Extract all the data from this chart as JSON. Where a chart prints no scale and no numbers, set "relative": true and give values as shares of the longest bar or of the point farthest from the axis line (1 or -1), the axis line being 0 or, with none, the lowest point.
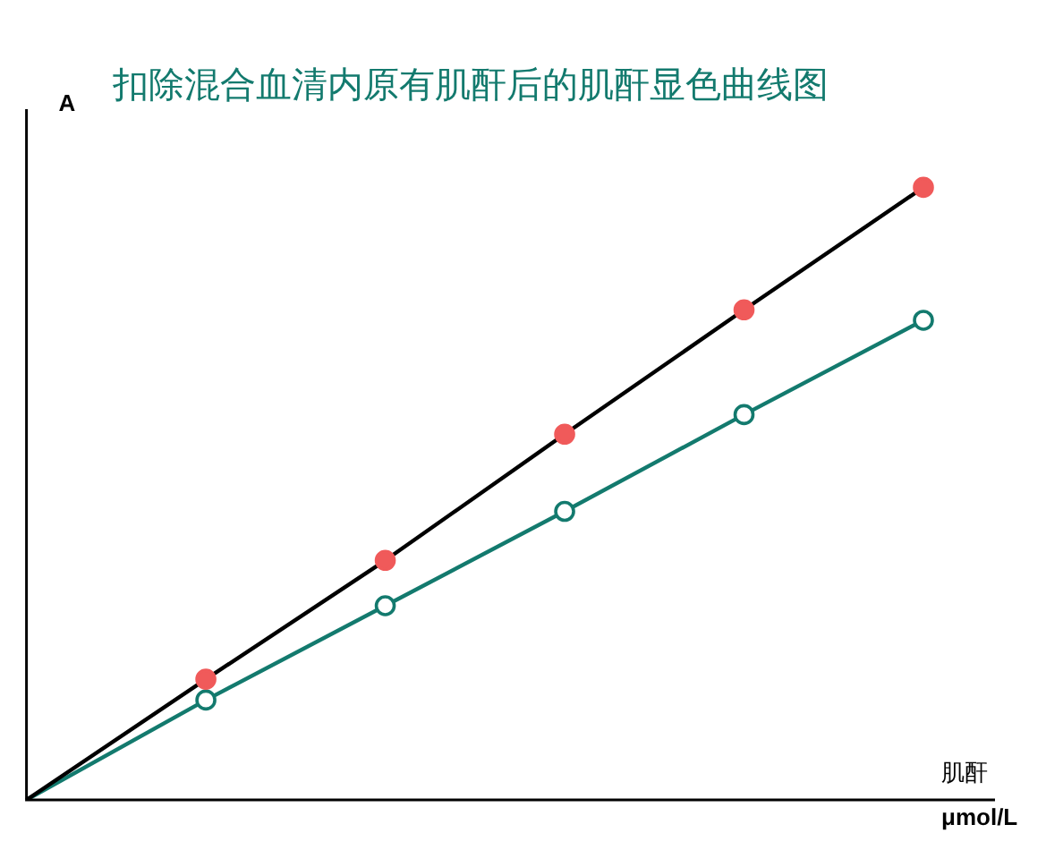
{
  "chart_data": {
    "type": "line",
    "title": "扣除混合血清内原有肌酐后的肌酐显色曲线图",
    "ylabel": "A",
    "xlabel": "μmol/L",
    "annotations": [
      "肌酐"
    ],
    "relative": true,
    "categories": [
      null,
      null,
      null,
      null,
      null,
      null
    ],
    "grid": false,
    "legend": false,
    "marker": "circle",
    "series": [
      {
        "color": "#000000",
        "values": [
          0,
          0.197,
          0.391,
          0.597,
          0.8,
          1
        ]
      },
      {
        "color": "#137a6e",
        "values": [
          0,
          0.163,
          0.317,
          0.471,
          0.629,
          0.783
        ]
      }
    ]
  }
}
